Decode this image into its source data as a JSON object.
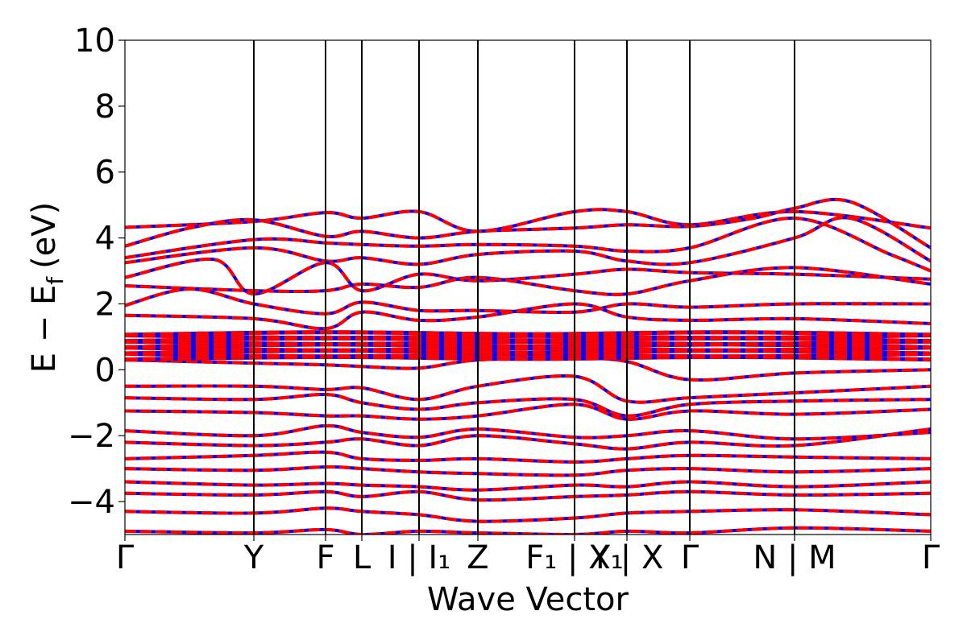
{
  "chart_data": {
    "type": "line",
    "title": "",
    "xlabel": "Wave Vector",
    "ylabel": "E − E",
    "ylabel_subscript": "f",
    "ylabel_unit": "(eV)",
    "ylim": [
      -5,
      10
    ],
    "y_ticks": [
      -4,
      -2,
      0,
      2,
      4,
      6,
      8,
      10
    ],
    "y_tick_labels": [
      "−4",
      "−2",
      "0",
      "2",
      "4",
      "6",
      "8",
      "10"
    ],
    "x_range": [
      0,
      1000
    ],
    "k_points": [
      {
        "label": "Γ",
        "x": 0
      },
      {
        "label": "Y",
        "x": 160
      },
      {
        "label": "F",
        "x": 249
      },
      {
        "label": "L",
        "x": 294
      },
      {
        "label": "I | I₁",
        "x": 365
      },
      {
        "label": "Z",
        "x": 438
      },
      {
        "label": "F₁ | X₁",
        "x": 558
      },
      {
        "label": "Y | X",
        "x": 623
      },
      {
        "label": "Γ",
        "x": 701
      },
      {
        "label": "N | M",
        "x": 831
      },
      {
        "label": "Γ",
        "x": 1000
      }
    ],
    "series_colors": {
      "spin_up": "#ff0000",
      "spin_down": "#0000ff"
    },
    "grid": false,
    "bands_upper": [
      [
        [
          0,
          4.32
        ],
        [
          160,
          4.5
        ],
        [
          249,
          4.77
        ],
        [
          294,
          4.6
        ],
        [
          365,
          4.8
        ],
        [
          438,
          4.2
        ],
        [
          558,
          4.8
        ],
        [
          623,
          4.8
        ],
        [
          701,
          4.4
        ],
        [
          831,
          4.8
        ],
        [
          1000,
          4.3
        ]
      ],
      [
        [
          0,
          3.75
        ],
        [
          80,
          4.3
        ],
        [
          160,
          4.55
        ],
        [
          249,
          4.05
        ],
        [
          294,
          4.2
        ],
        [
          365,
          4.0
        ],
        [
          438,
          4.2
        ],
        [
          558,
          4.3
        ],
        [
          623,
          4.4
        ],
        [
          701,
          4.35
        ],
        [
          780,
          4.6
        ],
        [
          831,
          4.9
        ],
        [
          900,
          5.1
        ],
        [
          1000,
          3.7
        ]
      ],
      [
        [
          0,
          3.4
        ],
        [
          160,
          3.95
        ],
        [
          249,
          3.85
        ],
        [
          294,
          3.8
        ],
        [
          365,
          3.75
        ],
        [
          438,
          3.8
        ],
        [
          558,
          3.75
        ],
        [
          623,
          3.6
        ],
        [
          701,
          3.7
        ],
        [
          831,
          4.6
        ],
        [
          950,
          3.5
        ],
        [
          1000,
          3.0
        ]
      ],
      [
        [
          0,
          3.25
        ],
        [
          160,
          3.7
        ],
        [
          249,
          3.3
        ],
        [
          294,
          3.4
        ],
        [
          365,
          3.2
        ],
        [
          438,
          3.5
        ],
        [
          558,
          3.6
        ],
        [
          623,
          3.3
        ],
        [
          701,
          3.25
        ],
        [
          831,
          4.0
        ],
        [
          900,
          4.6
        ],
        [
          1000,
          3.3
        ]
      ],
      [
        [
          0,
          2.8
        ],
        [
          110,
          3.35
        ],
        [
          160,
          2.3
        ],
        [
          249,
          3.25
        ],
        [
          294,
          2.4
        ],
        [
          365,
          2.9
        ],
        [
          438,
          2.7
        ],
        [
          558,
          2.9
        ],
        [
          623,
          3.05
        ],
        [
          701,
          2.95
        ],
        [
          831,
          2.9
        ],
        [
          1000,
          2.75
        ]
      ],
      [
        [
          0,
          2.55
        ],
        [
          160,
          2.4
        ],
        [
          249,
          2.4
        ],
        [
          294,
          2.6
        ],
        [
          365,
          2.5
        ],
        [
          438,
          2.8
        ],
        [
          558,
          2.4
        ],
        [
          623,
          2.3
        ],
        [
          701,
          2.7
        ],
        [
          831,
          3.1
        ],
        [
          1000,
          2.6
        ]
      ],
      [
        [
          0,
          1.95
        ],
        [
          80,
          2.45
        ],
        [
          160,
          2.0
        ],
        [
          249,
          1.7
        ],
        [
          294,
          2.05
        ],
        [
          365,
          1.8
        ],
        [
          438,
          1.8
        ],
        [
          558,
          1.75
        ],
        [
          623,
          2.0
        ],
        [
          701,
          1.9
        ],
        [
          831,
          2.0
        ],
        [
          1000,
          2.0
        ]
      ],
      [
        [
          0,
          1.65
        ],
        [
          160,
          1.55
        ],
        [
          249,
          1.25
        ],
        [
          294,
          1.75
        ],
        [
          365,
          1.5
        ],
        [
          438,
          1.6
        ],
        [
          558,
          2.0
        ],
        [
          623,
          1.6
        ],
        [
          701,
          1.5
        ],
        [
          831,
          1.55
        ],
        [
          1000,
          1.4
        ]
      ]
    ],
    "flat_band": {
      "y_min": 0.35,
      "y_max": 1.1,
      "count": 9
    },
    "bands_lower": [
      [
        [
          0,
          0.3
        ],
        [
          160,
          0.2
        ],
        [
          249,
          0.15
        ],
        [
          294,
          0.1
        ],
        [
          365,
          0.05
        ],
        [
          438,
          0.3
        ],
        [
          558,
          0.35
        ],
        [
          623,
          0.25
        ],
        [
          701,
          -0.3
        ],
        [
          831,
          -0.1
        ],
        [
          1000,
          0.0
        ]
      ],
      [
        [
          0,
          -0.5
        ],
        [
          160,
          -0.5
        ],
        [
          249,
          -0.6
        ],
        [
          294,
          -0.55
        ],
        [
          365,
          -0.9
        ],
        [
          438,
          -0.5
        ],
        [
          558,
          -0.2
        ],
        [
          623,
          -0.95
        ],
        [
          701,
          -0.85
        ],
        [
          831,
          -0.7
        ],
        [
          1000,
          -0.5
        ]
      ],
      [
        [
          0,
          -0.85
        ],
        [
          160,
          -0.9
        ],
        [
          249,
          -0.75
        ],
        [
          294,
          -1.0
        ],
        [
          365,
          -1.2
        ],
        [
          438,
          -1.0
        ],
        [
          558,
          -0.9
        ],
        [
          623,
          -1.4
        ],
        [
          701,
          -1.05
        ],
        [
          831,
          -0.95
        ],
        [
          1000,
          -0.9
        ]
      ],
      [
        [
          0,
          -1.25
        ],
        [
          160,
          -1.3
        ],
        [
          249,
          -1.4
        ],
        [
          294,
          -1.4
        ],
        [
          365,
          -1.5
        ],
        [
          438,
          -1.4
        ],
        [
          558,
          -1.05
        ],
        [
          623,
          -1.5
        ],
        [
          701,
          -1.25
        ],
        [
          831,
          -1.35
        ],
        [
          1000,
          -1.2
        ]
      ],
      [
        [
          0,
          -1.85
        ],
        [
          160,
          -2.0
        ],
        [
          249,
          -1.7
        ],
        [
          294,
          -1.9
        ],
        [
          365,
          -2.05
        ],
        [
          438,
          -1.8
        ],
        [
          558,
          -2.05
        ],
        [
          623,
          -2.0
        ],
        [
          701,
          -1.85
        ],
        [
          831,
          -2.1
        ],
        [
          1000,
          -1.9
        ]
      ],
      [
        [
          0,
          -2.2
        ],
        [
          160,
          -2.3
        ],
        [
          249,
          -2.2
        ],
        [
          294,
          -2.1
        ],
        [
          365,
          -2.3
        ],
        [
          438,
          -2.0
        ],
        [
          558,
          -2.25
        ],
        [
          623,
          -2.4
        ],
        [
          701,
          -2.2
        ],
        [
          831,
          -2.3
        ],
        [
          1000,
          -1.8
        ]
      ],
      [
        [
          0,
          -2.7
        ],
        [
          160,
          -2.6
        ],
        [
          249,
          -2.5
        ],
        [
          294,
          -2.7
        ],
        [
          365,
          -2.75
        ],
        [
          438,
          -2.7
        ],
        [
          558,
          -2.8
        ],
        [
          623,
          -2.7
        ],
        [
          701,
          -2.6
        ],
        [
          831,
          -2.65
        ],
        [
          1000,
          -2.7
        ]
      ],
      [
        [
          0,
          -3.0
        ],
        [
          160,
          -3.05
        ],
        [
          249,
          -2.95
        ],
        [
          294,
          -3.0
        ],
        [
          365,
          -3.1
        ],
        [
          438,
          -3.15
        ],
        [
          558,
          -3.2
        ],
        [
          623,
          -3.05
        ],
        [
          701,
          -3.0
        ],
        [
          831,
          -3.1
        ],
        [
          1000,
          -3.0
        ]
      ],
      [
        [
          0,
          -3.4
        ],
        [
          160,
          -3.5
        ],
        [
          249,
          -3.45
        ],
        [
          294,
          -3.5
        ],
        [
          365,
          -3.55
        ],
        [
          438,
          -3.65
        ],
        [
          558,
          -3.5
        ],
        [
          623,
          -3.55
        ],
        [
          701,
          -3.4
        ],
        [
          831,
          -3.55
        ],
        [
          1000,
          -3.4
        ]
      ],
      [
        [
          0,
          -3.75
        ],
        [
          160,
          -3.8
        ],
        [
          249,
          -3.7
        ],
        [
          294,
          -3.85
        ],
        [
          365,
          -3.7
        ],
        [
          438,
          -3.95
        ],
        [
          558,
          -3.85
        ],
        [
          623,
          -3.8
        ],
        [
          701,
          -3.7
        ],
        [
          831,
          -3.8
        ],
        [
          1000,
          -3.75
        ]
      ],
      [
        [
          0,
          -4.3
        ],
        [
          160,
          -4.35
        ],
        [
          249,
          -4.2
        ],
        [
          294,
          -4.3
        ],
        [
          365,
          -4.4
        ],
        [
          438,
          -4.6
        ],
        [
          558,
          -4.5
        ],
        [
          623,
          -4.35
        ],
        [
          701,
          -4.3
        ],
        [
          831,
          -4.25
        ],
        [
          1000,
          -4.4
        ]
      ],
      [
        [
          0,
          -4.9
        ],
        [
          160,
          -4.95
        ],
        [
          249,
          -4.85
        ],
        [
          294,
          -5.0
        ],
        [
          365,
          -4.9
        ],
        [
          438,
          -4.95
        ],
        [
          558,
          -5.0
        ],
        [
          623,
          -4.9
        ],
        [
          701,
          -4.95
        ],
        [
          831,
          -4.8
        ],
        [
          1000,
          -4.9
        ]
      ]
    ]
  }
}
